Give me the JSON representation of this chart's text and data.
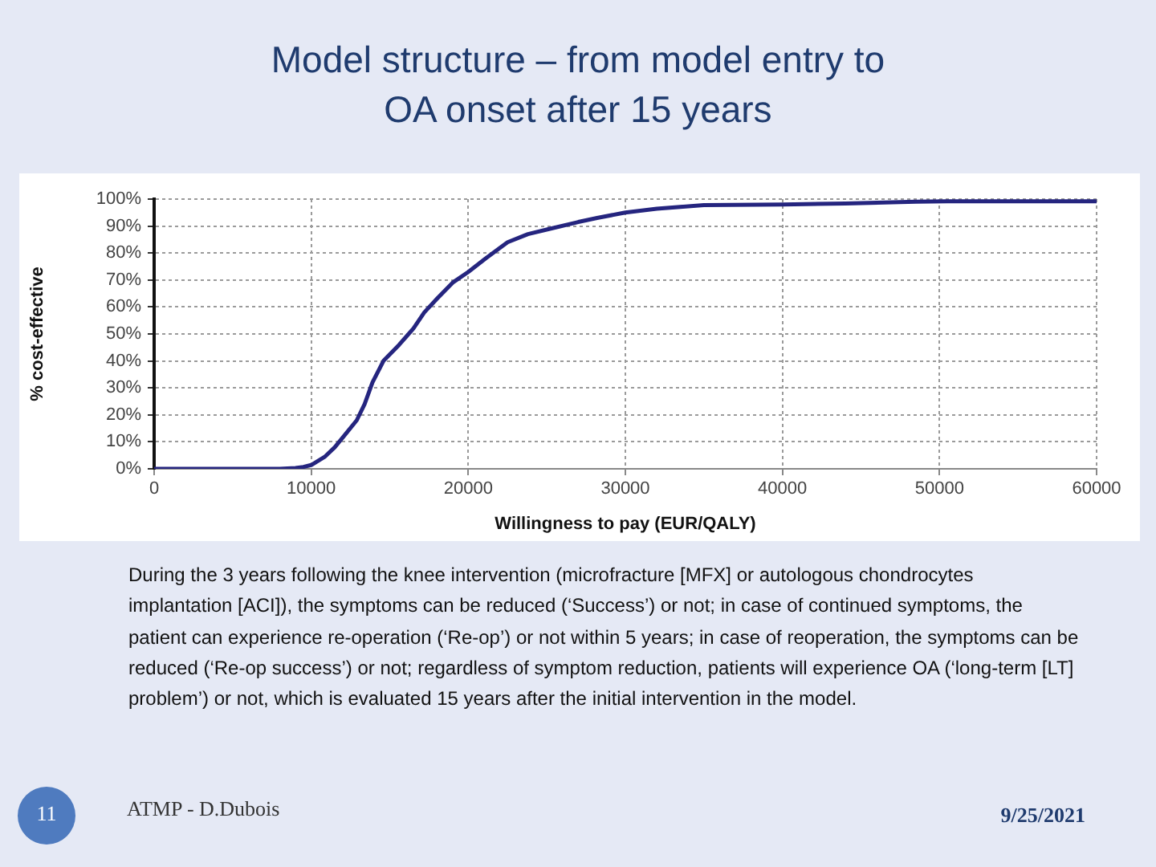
{
  "chart_data": {
    "type": "line",
    "title": "Model structure – from model entry to OA onset after 15 years",
    "xlabel": "Willingness to pay (EUR/QALY)",
    "ylabel": "% cost-effective",
    "x": [
      0,
      2000,
      4000,
      6000,
      8000,
      9000,
      9500,
      10000,
      10850,
      11500,
      12200,
      12900,
      13400,
      13900,
      14600,
      15600,
      16500,
      17200,
      18000,
      19000,
      20000,
      21100,
      22500,
      23800,
      25200,
      27000,
      28200,
      30000,
      32000,
      35000,
      40000,
      44000,
      48500,
      50500,
      55000,
      60000
    ],
    "series": [
      {
        "color": "#25257f",
        "values": [
          0,
          0,
          0,
          0,
          0,
          0.3,
          0.7,
          1.4,
          4.4,
          8,
          13,
          18,
          24,
          32,
          40,
          46,
          52,
          58,
          63,
          69,
          73,
          78,
          84,
          87,
          89,
          91.5,
          93,
          95,
          96.4,
          97.8,
          98,
          98.4,
          99,
          99.2,
          99.2,
          99.2
        ]
      }
    ],
    "xlim": [
      0,
      60000
    ],
    "xticks": [
      0,
      10000,
      20000,
      30000,
      40000,
      50000,
      60000
    ],
    "ylim": [
      0,
      100
    ],
    "yticks": [
      {
        "value": 0,
        "label": "0%"
      },
      {
        "value": 10,
        "label": "10%"
      },
      {
        "value": 20,
        "label": "20%"
      },
      {
        "value": 30,
        "label": "30%"
      },
      {
        "value": 40,
        "label": "40%"
      },
      {
        "value": 50,
        "label": "50%"
      },
      {
        "value": 60,
        "label": "60%"
      },
      {
        "value": 70,
        "label": "70%"
      },
      {
        "value": 80,
        "label": "80%"
      },
      {
        "value": 90,
        "label": "90%"
      },
      {
        "value": 100,
        "label": "100%"
      }
    ],
    "grid": true,
    "marker": "none",
    "line_style": "solid",
    "annotations": [
      "During the 3 years following the knee intervention (microfracture [MFX] or autologous chondrocytes implantation [ACI]), the symptoms can be reduced (‘Success’) or not; in case of continued symptoms, the patient can experience re-operation (‘Re-op’) or not within 5 years; in case of reoperation, the symptoms can be reduced (‘Re-op success’) or not; regardless of symptom reduction, patients will experience OA (‘long-term [LT] problem’) or not, which is evaluated 15 years after the initial intervention in the model.",
      "11",
      "ATMP - D.Dubois",
      "9/25/2021"
    ]
  }
}
